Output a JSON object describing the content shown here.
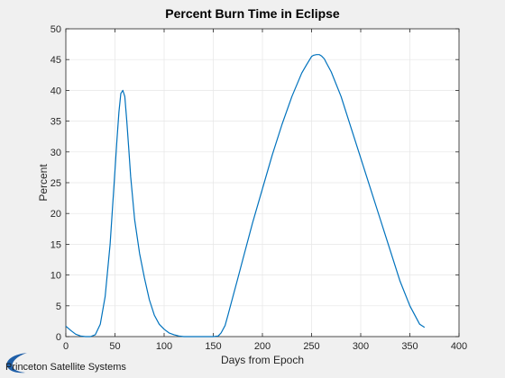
{
  "logo": {
    "text": "Princeton Satellite Systems",
    "color": "#1f5fa8"
  },
  "chart_data": {
    "type": "line",
    "title": "Percent Burn Time in Eclipse",
    "xlabel": "Days from Epoch",
    "ylabel": "Percent",
    "xlim": [
      0,
      400
    ],
    "ylim": [
      0,
      50
    ],
    "xticks": [
      0,
      50,
      100,
      150,
      200,
      250,
      300,
      350,
      400
    ],
    "yticks": [
      0,
      5,
      10,
      15,
      20,
      25,
      30,
      35,
      40,
      45,
      50
    ],
    "grid": true,
    "background": "#ffffff",
    "line_color": "#0072bd",
    "series": [
      {
        "x": [
          0,
          5,
          10,
          15,
          20,
          25,
          30,
          35,
          40,
          45,
          50,
          52,
          54,
          56,
          58,
          60,
          62,
          64,
          66,
          70,
          75,
          80,
          85,
          90,
          95,
          100,
          105,
          110,
          115,
          120,
          130,
          140,
          150,
          155,
          158,
          162,
          165,
          170,
          175,
          180,
          190,
          200,
          210,
          220,
          230,
          240,
          245,
          250,
          252,
          255,
          258,
          260,
          263,
          265,
          270,
          280,
          290,
          300,
          310,
          320,
          330,
          340,
          350,
          360,
          365
        ],
        "y": [
          1.7,
          1.0,
          0.4,
          0.1,
          0,
          0,
          0.3,
          2.0,
          6.5,
          15.0,
          27.0,
          32.0,
          36.5,
          39.5,
          40.0,
          39.0,
          35.0,
          30.5,
          26.0,
          19.0,
          13.5,
          9.5,
          6.0,
          3.5,
          2.0,
          1.2,
          0.6,
          0.3,
          0.1,
          0,
          0,
          0,
          0,
          0.1,
          0.6,
          1.8,
          3.5,
          6.5,
          9.5,
          12.5,
          18.5,
          24.0,
          29.5,
          34.5,
          39.0,
          42.8,
          44.2,
          45.5,
          45.7,
          45.8,
          45.8,
          45.6,
          45.1,
          44.5,
          43.0,
          39.0,
          34.0,
          29.0,
          24.0,
          19.0,
          14.0,
          9.0,
          5.0,
          2.0,
          1.5
        ]
      }
    ]
  }
}
